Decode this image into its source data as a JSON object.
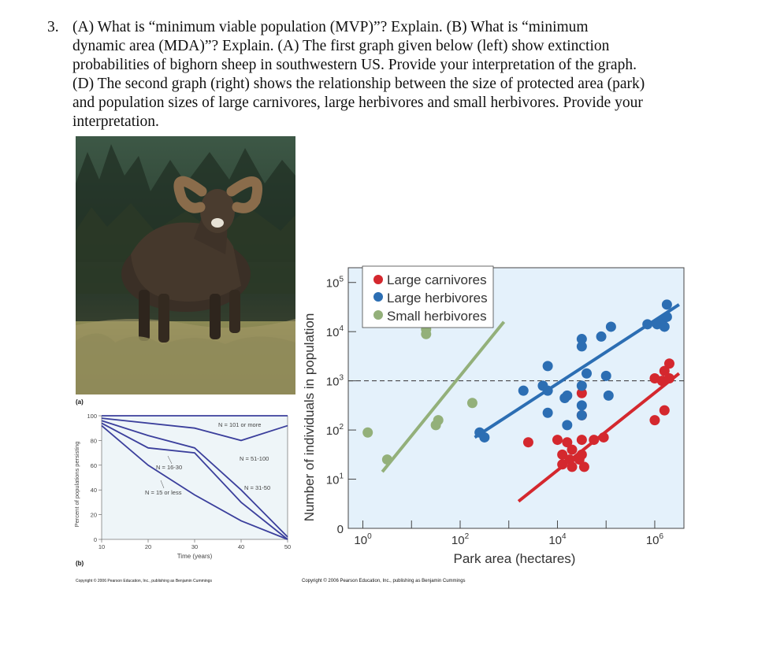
{
  "question": {
    "number": "3.",
    "lines": [
      "(A) What is “minimum viable population (MVP)”? Explain. (B) What is “minimum",
      "dynamic area (MDA)”? Explain. (A) The first graph given below (left) show extinction",
      "probabilities of bighorn sheep in southwestern US. Provide your interpretation of the graph.",
      "(D) The second graph (right) shows the relationship between the size of protected area (park)",
      "and population sizes of large carnivores, large herbivores and small herbivores. Provide your",
      "interpretation."
    ]
  },
  "figure_left": {
    "panel_a_label": "(a)",
    "panel_b_label": "(b)",
    "copyright": "Copyright © 2006 Pearson Education, Inc., publishing as Benjamin Cummings"
  },
  "figure_right": {
    "copyright": "Copyright © 2006 Pearson Education, Inc., publishing as Benjamin Cummings"
  },
  "chart_data": [
    {
      "type": "line",
      "xlabel": "Time (years)",
      "ylabel": "Percent of populations persisting",
      "xticks": [
        "10",
        "20",
        "30",
        "40",
        "50"
      ],
      "yticks": [
        "0",
        "20",
        "40",
        "60",
        "80",
        "100"
      ],
      "xlim": [
        10,
        50
      ],
      "ylim": [
        0,
        100
      ],
      "line_color": "#3b3f9c",
      "series": [
        {
          "name": "N = 101 or more",
          "x": [
            10,
            30,
            50
          ],
          "y": [
            100,
            100,
            100
          ]
        },
        {
          "name": "N = 51-100",
          "x": [
            10,
            30,
            40,
            50
          ],
          "y": [
            98,
            90,
            80,
            92
          ]
        },
        {
          "name": "N = 31-50",
          "x": [
            10,
            20,
            30,
            40,
            50
          ],
          "y": [
            96,
            84,
            74,
            40,
            2
          ]
        },
        {
          "name": "N = 16-30",
          "x": [
            10,
            20,
            30,
            40,
            50
          ],
          "y": [
            94,
            74,
            70,
            30,
            0
          ]
        },
        {
          "name": "N = 15 or less",
          "x": [
            10,
            20,
            30,
            40,
            50
          ],
          "y": [
            92,
            60,
            36,
            15,
            0
          ]
        }
      ],
      "series_labels": [
        {
          "text": "N = 101 or more"
        },
        {
          "text": "N = 51-100"
        },
        {
          "text": "N = 31-50"
        },
        {
          "text": "N = 16-30"
        },
        {
          "text": "N = 15 or less"
        }
      ]
    },
    {
      "type": "scatter",
      "xlabel": "Park area (hectares)",
      "ylabel": "Number of individuals in population",
      "x_scale": "log10",
      "y_scale": "log10",
      "xticks": [
        "10^0",
        "10^2",
        "10^4",
        "10^6"
      ],
      "yticks": [
        "0",
        "10^1",
        "10^2",
        "10^3",
        "10^4",
        "10^5"
      ],
      "xlim_log10": [
        -0.3,
        6.6
      ],
      "ylim_log10": [
        0,
        5.3
      ],
      "reference_line_log10_y": 3,
      "background": "#e4f1fb",
      "legend_position": "top-left",
      "series": [
        {
          "name": "Large carnivores",
          "color": "#d4282e",
          "points_log10": [
            [
              4.1,
              1.5
            ],
            [
              4.1,
              1.3
            ],
            [
              4.25,
              1.4
            ],
            [
              4.3,
              1.25
            ],
            [
              4.45,
              1.4
            ],
            [
              4.3,
              1.6
            ],
            [
              4.55,
              1.25
            ],
            [
              4.5,
              1.5
            ],
            [
              3.4,
              1.75
            ],
            [
              4.0,
              1.8
            ],
            [
              4.2,
              1.75
            ],
            [
              4.5,
              1.8
            ],
            [
              4.75,
              1.8
            ],
            [
              4.95,
              1.85
            ],
            [
              4.5,
              2.3
            ],
            [
              4.5,
              2.75
            ],
            [
              6.0,
              2.2
            ],
            [
              6.2,
              2.4
            ],
            [
              6.0,
              3.05
            ],
            [
              6.15,
              3.0
            ],
            [
              6.2,
              3.2
            ],
            [
              6.3,
              3.35
            ],
            [
              6.3,
              3.05
            ]
          ]
        },
        {
          "name": "Large herbivores",
          "color": "#2c6eb3",
          "points_log10": [
            [
              2.4,
              1.95
            ],
            [
              2.5,
              1.85
            ],
            [
              3.3,
              2.8
            ],
            [
              3.7,
              2.9
            ],
            [
              3.8,
              2.8
            ],
            [
              3.8,
              3.3
            ],
            [
              4.15,
              2.65
            ],
            [
              4.2,
              2.7
            ],
            [
              3.8,
              2.35
            ],
            [
              4.2,
              2.1
            ],
            [
              4.5,
              2.3
            ],
            [
              4.5,
              2.5
            ],
            [
              4.5,
              2.9
            ],
            [
              4.6,
              3.15
            ],
            [
              5.0,
              3.1
            ],
            [
              5.05,
              2.7
            ],
            [
              4.5,
              3.7
            ],
            [
              4.5,
              3.85
            ],
            [
              4.9,
              3.9
            ],
            [
              5.1,
              4.1
            ],
            [
              5.85,
              4.15
            ],
            [
              6.05,
              4.15
            ],
            [
              6.15,
              4.2
            ],
            [
              6.2,
              4.1
            ],
            [
              6.25,
              4.3
            ],
            [
              6.25,
              4.55
            ]
          ]
        },
        {
          "name": "Small herbivores",
          "color": "#93b07a",
          "points_log10": [
            [
              0.1,
              1.95
            ],
            [
              0.5,
              1.4
            ],
            [
              1.5,
              2.1
            ],
            [
              1.55,
              2.2
            ],
            [
              2.25,
              2.55
            ],
            [
              1.3,
              4.05
            ],
            [
              1.3,
              3.95
            ]
          ]
        }
      ],
      "fit_lines_log10": [
        {
          "series": "Small herbivores",
          "from": [
            0.4,
            1.15
          ],
          "to": [
            2.9,
            4.2
          ]
        },
        {
          "series": "Large herbivores",
          "from": [
            2.3,
            1.85
          ],
          "to": [
            6.5,
            4.55
          ]
        },
        {
          "series": "Large carnivores",
          "from": [
            3.2,
            0.55
          ],
          "to": [
            6.5,
            3.15
          ]
        }
      ]
    }
  ]
}
